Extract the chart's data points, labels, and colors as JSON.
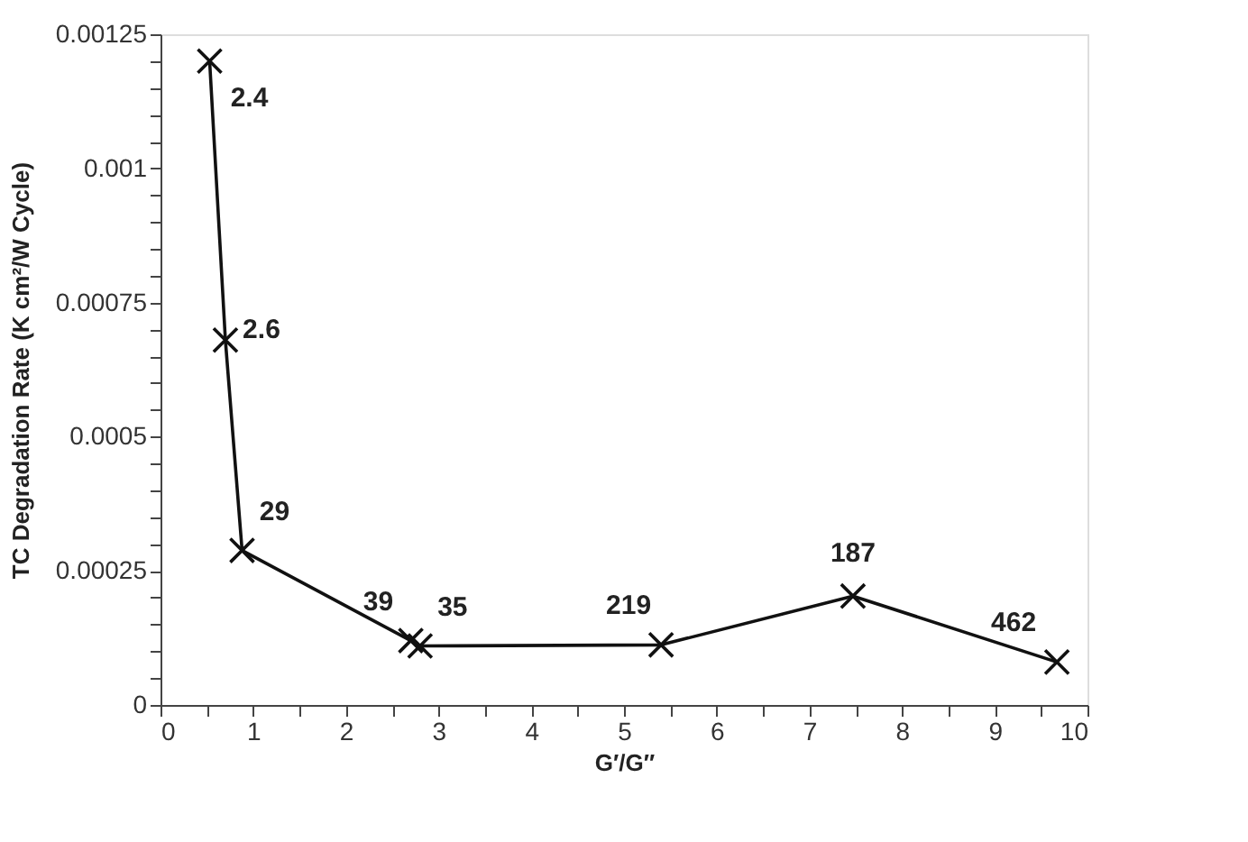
{
  "chart_data": {
    "type": "line",
    "xlabel": "G′/G″",
    "ylabel": "TC Degradation Rate (K cm²/W Cycle)",
    "x": [
      0.53,
      0.7,
      0.88,
      2.7,
      2.8,
      5.4,
      7.47,
      9.67
    ],
    "series": [
      {
        "color": "#111111",
        "values": [
          0.0012,
          0.00068,
          0.000288,
          0.00012,
          0.00011,
          0.000112,
          0.000203,
          8e-05
        ]
      }
    ],
    "annotations": [
      {
        "text": "2.4",
        "x": 0.53,
        "y": 0.0012
      },
      {
        "text": "2.6",
        "x": 0.7,
        "y": 0.00068
      },
      {
        "text": "29",
        "x": 0.88,
        "y": 0.000288
      },
      {
        "text": "39",
        "x": 2.7,
        "y": 0.00012
      },
      {
        "text": "35",
        "x": 2.8,
        "y": 0.00011
      },
      {
        "text": "219",
        "x": 5.4,
        "y": 0.000112
      },
      {
        "text": "187",
        "x": 7.47,
        "y": 0.000203
      },
      {
        "text": "462",
        "x": 9.67,
        "y": 8e-05
      }
    ],
    "xlim": [
      0,
      10
    ],
    "ylim": [
      0,
      0.00125
    ],
    "xticks": [
      0,
      {
        "value": 0.5,
        "label": null
      },
      1,
      {
        "value": 1.5,
        "label": null
      },
      2,
      {
        "value": 2.5,
        "label": null
      },
      3,
      {
        "value": 3.5,
        "label": null
      },
      4,
      {
        "value": 4.5,
        "label": null
      },
      5,
      {
        "value": 5.5,
        "label": null
      },
      6,
      {
        "value": 6.5,
        "label": null
      },
      7,
      {
        "value": 7.5,
        "label": null
      },
      8,
      {
        "value": 8.5,
        "label": null
      },
      9,
      {
        "value": 9.5,
        "label": null
      },
      10
    ],
    "yticks": [
      0,
      {
        "value": 5e-05,
        "label": null
      },
      {
        "value": 0.0001,
        "label": null
      },
      {
        "value": 0.00015,
        "label": null
      },
      {
        "value": 0.0002,
        "label": null
      },
      0.00025,
      {
        "value": 0.0003,
        "label": null
      },
      {
        "value": 0.00035,
        "label": null
      },
      {
        "value": 0.0004,
        "label": null
      },
      {
        "value": 0.00045,
        "label": null
      },
      0.0005,
      {
        "value": 0.00055,
        "label": null
      },
      {
        "value": 0.0006,
        "label": null
      },
      {
        "value": 0.00065,
        "label": null
      },
      {
        "value": 0.0007,
        "label": null
      },
      0.00075,
      {
        "value": 0.0008,
        "label": null
      },
      {
        "value": 0.00085,
        "label": null
      },
      {
        "value": 0.0009,
        "label": null
      },
      {
        "value": 0.00095,
        "label": null
      },
      0.001,
      {
        "value": 0.00105,
        "label": null
      },
      {
        "value": 0.0011,
        "label": null
      },
      {
        "value": 0.00115,
        "label": null
      },
      {
        "value": 0.0012,
        "label": null
      },
      0.00125
    ],
    "grid": false,
    "marker": "cross",
    "line_style": "solid"
  }
}
